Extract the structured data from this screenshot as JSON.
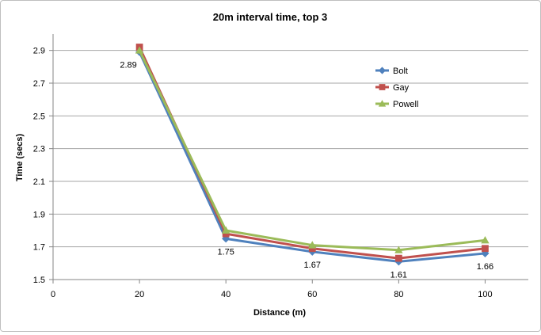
{
  "chart_data": {
    "type": "line",
    "title": "20m interval time, top 3",
    "xlabel": "Distance (m)",
    "ylabel": "Time (secs)",
    "x": [
      20,
      40,
      60,
      80,
      100
    ],
    "xlim": [
      0,
      110
    ],
    "xticks": [
      "0",
      "20",
      "40",
      "60",
      "80",
      "100"
    ],
    "ylim": [
      1.5,
      3.0
    ],
    "yticks": [
      "1.5",
      "1.7",
      "1.9",
      "2.1",
      "2.3",
      "2.5",
      "2.7",
      "2.9"
    ],
    "grid": "horizontal",
    "legend_position": "right",
    "series": [
      {
        "name": "Bolt",
        "values": [
          2.89,
          1.75,
          1.67,
          1.61,
          1.66
        ],
        "color": "#4f81bd",
        "marker": "diamond"
      },
      {
        "name": "Gay",
        "values": [
          2.92,
          1.78,
          1.69,
          1.63,
          1.69
        ],
        "color": "#c0504d",
        "marker": "square"
      },
      {
        "name": "Powell",
        "values": [
          2.9,
          1.8,
          1.71,
          1.68,
          1.74
        ],
        "color": "#9bbb59",
        "marker": "triangle"
      }
    ],
    "data_labels": [
      "2.89",
      "1.75",
      "1.67",
      "1.61",
      "1.66"
    ]
  }
}
